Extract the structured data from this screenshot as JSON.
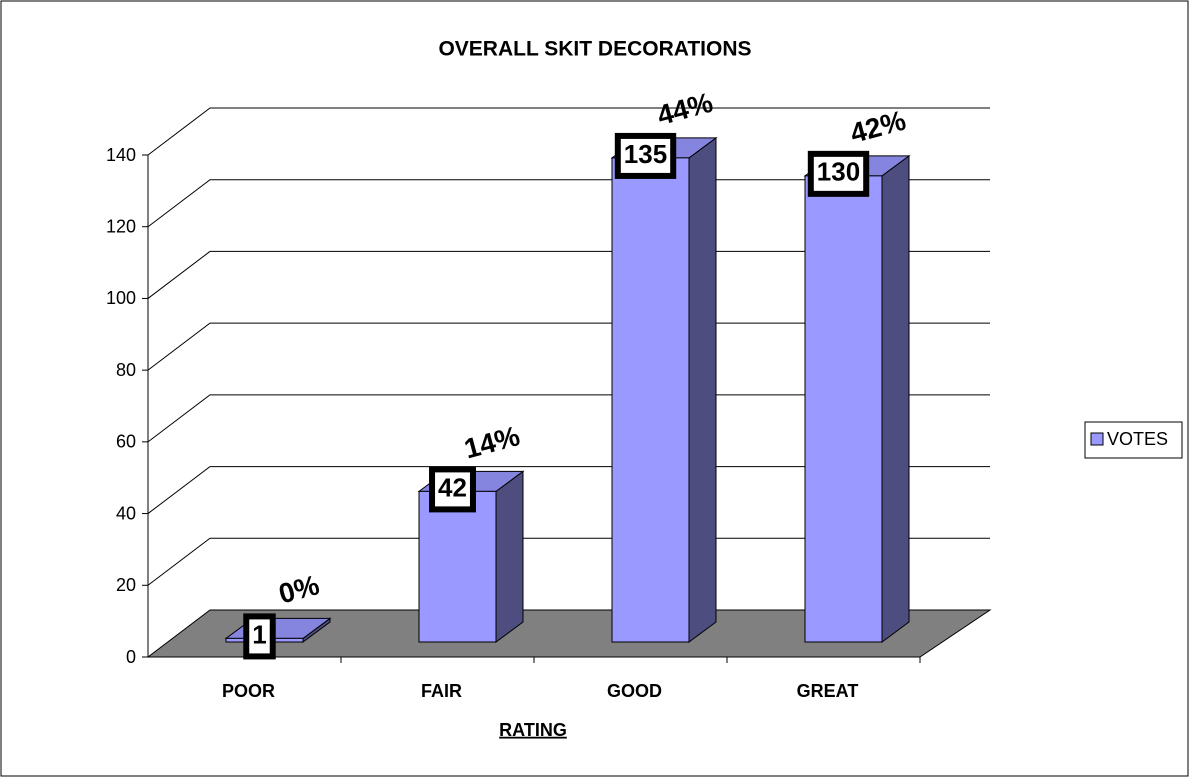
{
  "chart_data": {
    "type": "bar3d",
    "title": "OVERALL SKIT DECORATIONS",
    "x_label": "RATING",
    "categories": [
      "POOR",
      "FAIR",
      "GOOD",
      "GREAT"
    ],
    "series": [
      {
        "name": "VOTES",
        "color": "#9999ff",
        "values": [
          1,
          42,
          135,
          130
        ]
      }
    ],
    "annotations": [
      "0%",
      "14%",
      "44%",
      "42%"
    ],
    "ylim": [
      0,
      140
    ],
    "yticks": [
      0,
      20,
      40,
      60,
      80,
      100,
      120,
      140
    ],
    "grid": true,
    "legend": "right"
  }
}
